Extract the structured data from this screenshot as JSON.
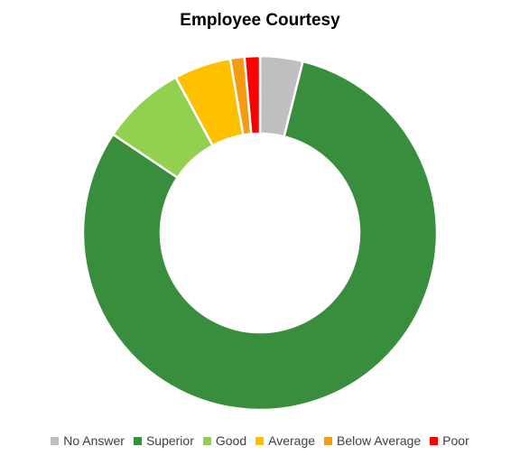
{
  "chart_data": {
    "type": "pie",
    "subtype": "doughnut",
    "title": "Employee Courtesy",
    "categories": [
      "No Answer",
      "Superior",
      "Good",
      "Average",
      "Below Average",
      "Poor"
    ],
    "values": [
      3.9,
      80.5,
      7.7,
      5.2,
      1.3,
      1.4
    ],
    "colors": [
      "#bfbfbf",
      "#388e3c",
      "#92d050",
      "#ffc000",
      "#f39c12",
      "#ff0000"
    ],
    "legend_position": "bottom",
    "start_angle": "top, clockwise"
  }
}
